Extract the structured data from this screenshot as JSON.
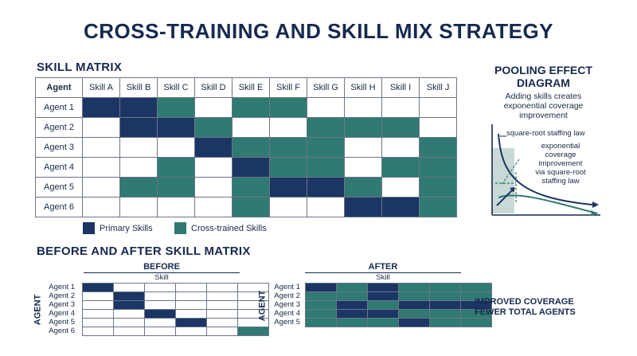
{
  "title": "CROSS-TRAINING AND SKILL MIX STRATEGY",
  "skill_matrix": {
    "heading": "SKILL MATRIX",
    "corner_label": "Agent",
    "skills": [
      "Skill A",
      "Skill B",
      "Skill C",
      "Skill D",
      "Skill E",
      "Skill F",
      "Skill G",
      "Skill H",
      "Skill I",
      "Skill J"
    ],
    "agents": [
      "Agent 1",
      "Agent 2",
      "Agent 3",
      "Agent 4",
      "Agent 5",
      "Agent 6"
    ],
    "cells": [
      [
        "P",
        "P",
        "C",
        "",
        "C",
        "C",
        "",
        "",
        "",
        ""
      ],
      [
        "",
        "P",
        "P",
        "C",
        "",
        "",
        "C",
        "C",
        "C",
        ""
      ],
      [
        "",
        "",
        "",
        "P",
        "C",
        "C",
        "C",
        "",
        "",
        "C"
      ],
      [
        "",
        "",
        "C",
        "",
        "P",
        "C",
        "C",
        "",
        "C",
        "C"
      ],
      [
        "",
        "C",
        "C",
        "",
        "C",
        "P",
        "P",
        "C",
        "",
        "C"
      ],
      [
        "",
        "",
        "",
        "",
        "C",
        "",
        "",
        "P",
        "P",
        "C"
      ]
    ]
  },
  "legend": {
    "primary": "Primary Skills",
    "cross": "Cross-trained Skills"
  },
  "colors": {
    "primary": "#1b3564",
    "cross": "#2f7a72",
    "empty": "#ffffff"
  },
  "pooling": {
    "title": "POOLING EFFECT DIAGRAM",
    "caption": "Adding skills creates exponential coverage improvement",
    "label_1": "square-root staffing law",
    "label_2": [
      "exponential",
      "coverage",
      "improvement",
      "via square-root",
      "staffing law"
    ]
  },
  "before_after": {
    "heading": "BEFORE AND AFTER SKILL MATRIX",
    "axis_label": "AGENT",
    "skill_label": "Skill",
    "before": {
      "label": "BEFORE",
      "agents": [
        "Agent 1",
        "Agent 2",
        "Agent 3",
        "Agent 4",
        "Agent 5",
        "Agent 6"
      ],
      "cells": [
        [
          "P",
          "",
          "",
          "",
          "",
          ""
        ],
        [
          "",
          "P",
          "",
          "",
          "",
          ""
        ],
        [
          "",
          "P",
          "",
          "",
          "",
          ""
        ],
        [
          "",
          "",
          "P",
          "",
          "",
          ""
        ],
        [
          "",
          "",
          "",
          "P",
          "",
          ""
        ],
        [
          "",
          "",
          "",
          "",
          "",
          "C"
        ]
      ]
    },
    "after": {
      "label": "AFTER",
      "agents": [
        "Agent 1",
        "Agent 2",
        "Agent 3",
        "Agent 4",
        "Agent 5"
      ],
      "cells": [
        [
          "P",
          "C",
          "P",
          "C",
          "C",
          "C"
        ],
        [
          "C",
          "C",
          "P",
          "C",
          "C",
          "C"
        ],
        [
          "C",
          "P",
          "C",
          "P",
          "P",
          "P"
        ],
        [
          "C",
          "P",
          "P",
          "C",
          "C",
          "C"
        ],
        [
          "C",
          "C",
          "C",
          "P",
          "C",
          "C"
        ]
      ]
    },
    "result_lines": [
      "IMPROVED COVERAGE",
      "FEWER TOTAL AGENTS"
    ]
  }
}
